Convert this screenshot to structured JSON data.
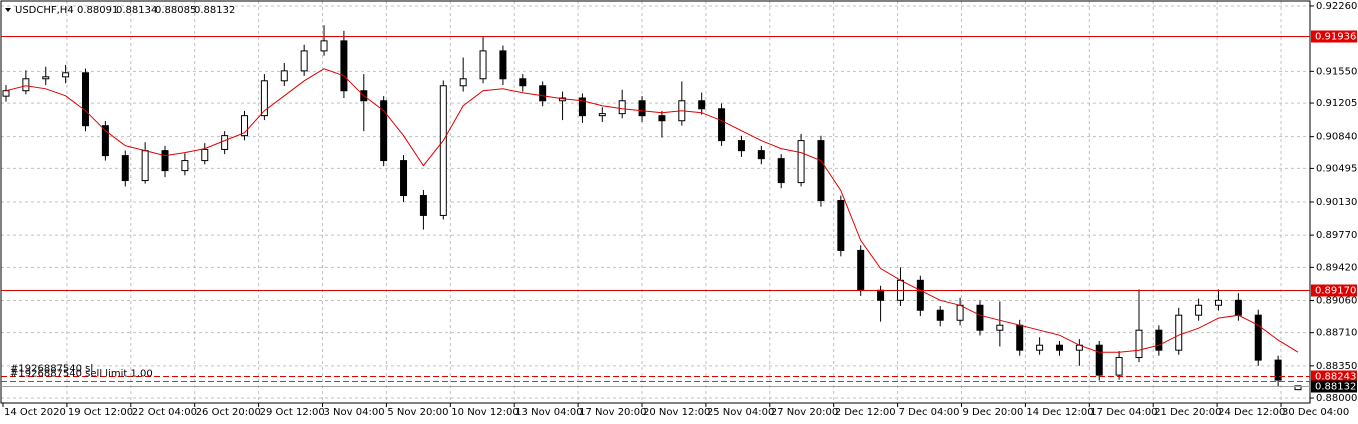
{
  "chart_data": {
    "type": "candlestick",
    "symbol": "USDCHF,H4",
    "up_color": "#ffffff",
    "down_color": "#000000",
    "outline_color": "#000000",
    "grid": true,
    "ylim": [
      0.87946,
      0.92314
    ],
    "yticks": [
      {
        "value": 0.9226,
        "label": "0.92260"
      },
      {
        "value": 0.9155,
        "label": "0.91550"
      },
      0.91205,
      {
        "value": 0.9084,
        "label": "0.90840"
      },
      0.90495,
      {
        "value": 0.9013,
        "label": "0.90130"
      },
      {
        "value": 0.8977,
        "label": "0.89770"
      },
      {
        "value": 0.8942,
        "label": "0.89420"
      },
      {
        "value": 0.8906,
        "label": "0.89060"
      },
      {
        "value": 0.8871,
        "label": "0.88710"
      },
      {
        "value": 0.8835,
        "label": "0.88350"
      },
      {
        "value": 0.88,
        "label": "0.88000"
      }
    ],
    "x_labels": [
      "14 Oct 2020",
      "19 Oct 12:00",
      "22 Oct 04:00",
      "26 Oct 20:00",
      "29 Oct 12:00",
      "3 Nov 04:00",
      "5 Nov 20:00",
      "10 Nov 12:00",
      "13 Nov 04:00",
      "17 Nov 20:00",
      "20 Nov 12:00",
      "25 Nov 04:00",
      "27 Nov 20:00",
      "2 Dec 12:00",
      "7 Dec 04:00",
      "9 Dec 20:00",
      "14 Dec 12:00",
      "17 Dec 04:00",
      "21 Dec 20:00",
      "24 Dec 12:00",
      "30 Dec 04:00"
    ],
    "open": [
      0.9128,
      0.91339,
      0.91469,
      0.9149,
      0.91534,
      0.90959,
      0.90634,
      0.90363,
      0.90688,
      0.90471,
      0.9058,
      0.90701,
      0.90851,
      0.91068,
      0.91447,
      0.91555,
      0.91772,
      0.91881,
      0.91339,
      0.9123,
      0.9058,
      0.902,
      0.89984,
      0.91393,
      0.91469,
      0.91772,
      0.91469,
      0.91393,
      0.9123,
      0.9126,
      0.91068,
      0.9109,
      0.9123,
      0.91068,
      0.91013,
      0.9123,
      0.91143,
      0.90797,
      0.90688,
      0.90601,
      0.90341,
      0.90797,
      0.90146,
      0.89604,
      0.89171,
      0.89062,
      0.89279,
      0.88954,
      0.88845,
      0.89008,
      0.88737,
      0.88791,
      0.8852,
      0.88574,
      0.8852,
      0.88574,
      0.88249,
      0.8844,
      0.88737,
      0.8852,
      0.889,
      0.89008,
      0.89062,
      0.889,
      0.88412,
      0.88091
    ],
    "high": [
      0.914,
      0.9156,
      0.916,
      0.9162,
      0.9158,
      0.9101,
      0.9069,
      0.9078,
      0.9074,
      0.9066,
      0.9077,
      0.909,
      0.9112,
      0.9152,
      0.9164,
      0.9184,
      0.9205,
      0.9199,
      0.9152,
      0.9128,
      0.9064,
      0.9026,
      0.9145,
      0.917,
      0.9193,
      0.9183,
      0.9152,
      0.9144,
      0.9133,
      0.9131,
      0.9116,
      0.9135,
      0.9128,
      0.9112,
      0.9144,
      0.9132,
      0.912,
      0.9085,
      0.9074,
      0.9065,
      0.9087,
      0.9085,
      0.902,
      0.8966,
      0.8922,
      0.8942,
      0.8933,
      0.89,
      0.8909,
      0.8906,
      0.8905,
      0.8885,
      0.8866,
      0.8862,
      0.8864,
      0.8862,
      0.8851,
      0.8918,
      0.8879,
      0.8898,
      0.8908,
      0.8918,
      0.8914,
      0.8896,
      0.8846,
      0.88134
    ],
    "low": [
      0.9122,
      0.913,
      0.914,
      0.9142,
      0.909,
      0.9058,
      0.903,
      0.9033,
      0.904,
      0.9042,
      0.9054,
      0.9065,
      0.908,
      0.9102,
      0.9139,
      0.915,
      0.9172,
      0.9126,
      0.909,
      0.9052,
      0.9013,
      0.8983,
      0.8994,
      0.9133,
      0.9142,
      0.914,
      0.9133,
      0.9117,
      0.9102,
      0.9099,
      0.91,
      0.9104,
      0.91,
      0.9083,
      0.9096,
      0.9108,
      0.9074,
      0.9062,
      0.9054,
      0.9028,
      0.903,
      0.9008,
      0.8954,
      0.8911,
      0.8883,
      0.89,
      0.8889,
      0.8878,
      0.8879,
      0.8868,
      0.8856,
      0.8846,
      0.8847,
      0.8846,
      0.8835,
      0.8819,
      0.882,
      0.8839,
      0.8846,
      0.8847,
      0.8884,
      0.8895,
      0.8884,
      0.8835,
      0.8813,
      0.88085
    ],
    "close": [
      0.91339,
      0.91469,
      0.9149,
      0.91534,
      0.90959,
      0.90634,
      0.90363,
      0.90688,
      0.90471,
      0.9058,
      0.90701,
      0.90851,
      0.91068,
      0.91447,
      0.91555,
      0.91772,
      0.91881,
      0.91339,
      0.9123,
      0.9058,
      0.902,
      0.89984,
      0.91393,
      0.91469,
      0.91772,
      0.91469,
      0.91393,
      0.9123,
      0.9126,
      0.91068,
      0.9109,
      0.9123,
      0.91068,
      0.91013,
      0.9123,
      0.91143,
      0.90797,
      0.90688,
      0.90601,
      0.90341,
      0.90797,
      0.90146,
      0.89604,
      0.89171,
      0.89062,
      0.89279,
      0.88954,
      0.88845,
      0.89008,
      0.88737,
      0.88791,
      0.8852,
      0.88574,
      0.8852,
      0.88574,
      0.88249,
      0.8844,
      0.88737,
      0.8852,
      0.889,
      0.89008,
      0.89062,
      0.889,
      0.88412,
      0.88195,
      0.88132
    ],
    "ma": {
      "color": "#e00000",
      "values": [
        0.91339,
        0.91393,
        0.9136,
        0.91284,
        0.91122,
        0.90905,
        0.90742,
        0.90688,
        0.90634,
        0.90667,
        0.9071,
        0.90797,
        0.90883,
        0.91122,
        0.91284,
        0.91447,
        0.91577,
        0.91501,
        0.91284,
        0.91122,
        0.90851,
        0.90526,
        0.90797,
        0.91176,
        0.91339,
        0.9136,
        0.91317,
        0.91284,
        0.91252,
        0.9123,
        0.91176,
        0.91143,
        0.91122,
        0.911,
        0.91122,
        0.911,
        0.91013,
        0.90905,
        0.90797,
        0.9071,
        0.90667,
        0.9058,
        0.90255,
        0.89713,
        0.89409,
        0.89279,
        0.89171,
        0.89062,
        0.89008,
        0.889,
        0.88845,
        0.88791,
        0.88737,
        0.88683,
        0.88574,
        0.88498,
        0.88498,
        0.8852,
        0.88574,
        0.88683,
        0.88759,
        0.88868,
        0.889,
        0.88791,
        0.88629,
        0.88498
      ]
    },
    "levels": [
      {
        "price": 0.91936,
        "color": "#e00000",
        "style": "solid",
        "box": true
      },
      {
        "price": {
          "value": 0.8917,
          "label": "0.89170"
        },
        "color": "#e00000",
        "style": "solid",
        "box": true
      },
      {
        "price": 0.88243,
        "color": "#e00000",
        "style": "dashed",
        "box": true,
        "text": "#1926887540 sl"
      },
      {
        "price": 0.88184,
        "color": "#00a000",
        "style": "dashed",
        "box": false,
        "text": "#1926887540 sell limit 1.00"
      }
    ],
    "price_line_color": "#a0a0a0"
  }
}
